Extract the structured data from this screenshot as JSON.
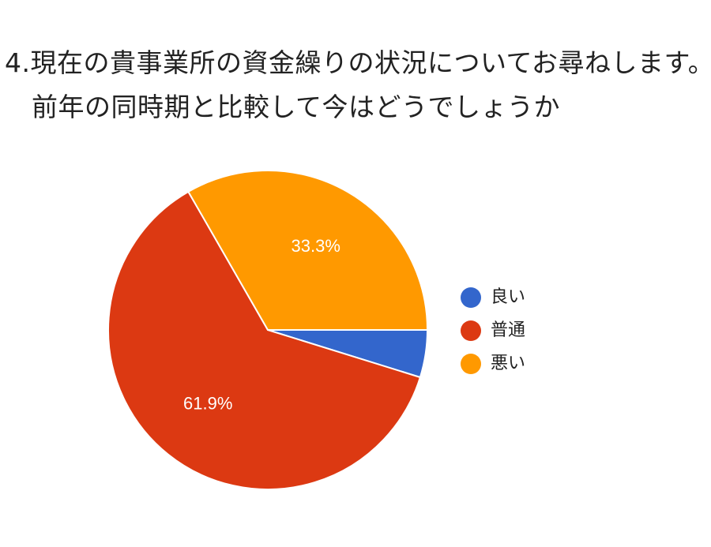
{
  "title": {
    "line1": "4.現在の貴事業所の資金繰りの状況についてお尋ねします。",
    "line2": "前年の同時期と比較して今はどうでしょうか"
  },
  "chart_data": {
    "type": "pie",
    "title": "4.現在の貴事業所の資金繰りの状況についてお尋ねします。 前年の同時期と比較して今はどうでしょうか",
    "categories": [
      "良い",
      "普通",
      "悪い"
    ],
    "values": [
      4.8,
      61.9,
      33.3
    ],
    "data_labels": [
      "",
      "61.9%",
      "33.3%"
    ],
    "colors": [
      "#3366cc",
      "#dc3912",
      "#ff9900"
    ],
    "legend_position": "right"
  }
}
